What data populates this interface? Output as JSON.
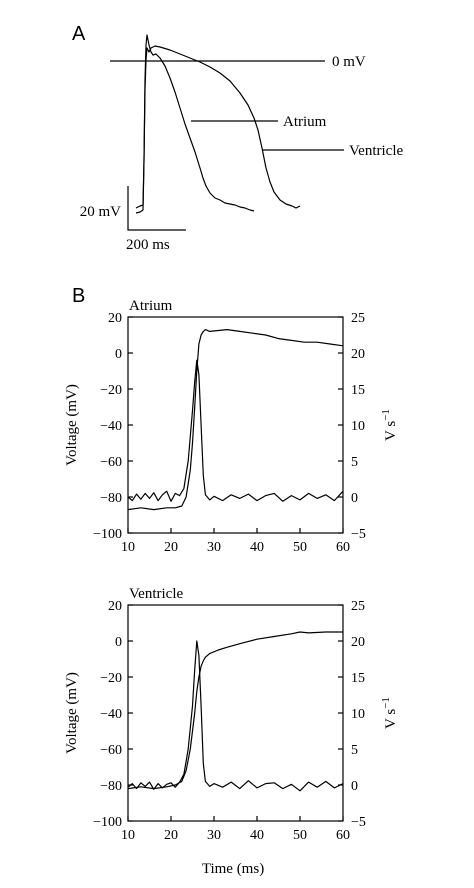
{
  "panel_a": {
    "letter": "A",
    "zero_label": "0 mV",
    "atrium_label": "Atrium",
    "ventricle_label": "Ventricle",
    "scale_voltage": "20 mV",
    "scale_time": "200 ms"
  },
  "panel_b": {
    "letter": "B",
    "shared_x_label": "Time (ms)"
  },
  "chart_data": [
    {
      "id": "atrium",
      "type": "line",
      "title": "Atrium",
      "xlabel": "",
      "ylabel": "Voltage (mV)",
      "y2label_base": "V s",
      "y2label_exp": "−1",
      "xlim": [
        10,
        60
      ],
      "ylim": [
        -100,
        20
      ],
      "y2lim": [
        -5,
        25
      ],
      "x_ticks": [
        10,
        20,
        30,
        40,
        50,
        60
      ],
      "y_ticks": [
        -100,
        -80,
        -60,
        -40,
        -20,
        0,
        20
      ],
      "y2_ticks": [
        -5,
        0,
        5,
        10,
        15,
        20,
        25
      ],
      "series": [
        {
          "axis": "left",
          "x": [
            10,
            13,
            16,
            19,
            21,
            22.5,
            23.5,
            24.5,
            25,
            25.5,
            26,
            26.5,
            27,
            27.5,
            28,
            29,
            31,
            33,
            36,
            39,
            42,
            45,
            48,
            51,
            54,
            57,
            60
          ],
          "y": [
            -87,
            -86,
            -87,
            -86,
            -86,
            -85,
            -80,
            -65,
            -50,
            -30,
            -10,
            5,
            10,
            12,
            13,
            12,
            12.5,
            13,
            12,
            11,
            10,
            8,
            7,
            6,
            6,
            5,
            4
          ]
        },
        {
          "axis": "right",
          "x": [
            10,
            11,
            12,
            13,
            14,
            15,
            16,
            17,
            18,
            19,
            20,
            21,
            22,
            23,
            24,
            25,
            25.5,
            26,
            26.5,
            27,
            27.5,
            28,
            29,
            30,
            32,
            34,
            36,
            38,
            40,
            42,
            44,
            46,
            48,
            50,
            52,
            54,
            56,
            58,
            60
          ],
          "y": [
            0,
            -0.5,
            0.4,
            -0.3,
            0.5,
            -0.2,
            0.6,
            -0.5,
            0.3,
            0.8,
            -0.6,
            0.5,
            0.2,
            1.2,
            5,
            12,
            16,
            19,
            17,
            10,
            3,
            0.3,
            -0.4,
            0.1,
            -0.5,
            0.3,
            -0.2,
            0.4,
            -0.5,
            0.2,
            0.5,
            -0.6,
            0.2,
            -0.4,
            0.5,
            -0.2,
            0.3,
            -0.5,
            0.8
          ]
        }
      ]
    },
    {
      "id": "ventricle",
      "type": "line",
      "title": "Ventricle",
      "xlabel": "Time (ms)",
      "ylabel": "Voltage (mV)",
      "y2label_base": "V s",
      "y2label_exp": "−1",
      "xlim": [
        10,
        60
      ],
      "ylim": [
        -100,
        20
      ],
      "y2lim": [
        -5,
        25
      ],
      "x_ticks": [
        10,
        20,
        30,
        40,
        50,
        60
      ],
      "y_ticks": [
        -100,
        -80,
        -60,
        -40,
        -20,
        0,
        20
      ],
      "y2_ticks": [
        -5,
        0,
        5,
        10,
        15,
        20,
        25
      ],
      "series": [
        {
          "axis": "left",
          "x": [
            10,
            13,
            16,
            19,
            21,
            22.5,
            23.5,
            24.5,
            25,
            25.5,
            26,
            26.5,
            27,
            27.5,
            28,
            29,
            31,
            33,
            36,
            40,
            44,
            48,
            50,
            52,
            56,
            60
          ],
          "y": [
            -82,
            -81,
            -82,
            -81,
            -80,
            -78,
            -72,
            -60,
            -50,
            -40,
            -28,
            -20,
            -14,
            -11,
            -9,
            -7,
            -5,
            -3.5,
            -1.5,
            1,
            2.5,
            4,
            5,
            4.5,
            5,
            5
          ]
        },
        {
          "axis": "right",
          "x": [
            10,
            11,
            12,
            13,
            14,
            15,
            16,
            17,
            18,
            19,
            20,
            21,
            22,
            23,
            24,
            25,
            25.5,
            26,
            26.5,
            27,
            27.5,
            28,
            29,
            30,
            32,
            34,
            36,
            38,
            40,
            42,
            44,
            46,
            48,
            50,
            52,
            54,
            56,
            58,
            60
          ],
          "y": [
            -0.3,
            0.2,
            -0.5,
            0.3,
            -0.2,
            0.4,
            -0.6,
            0.2,
            -0.4,
            0.1,
            0.3,
            -0.3,
            0.4,
            1.5,
            5,
            11,
            16,
            20,
            18,
            11,
            3,
            0.5,
            -0.2,
            0.2,
            -0.3,
            0.4,
            -0.5,
            0.6,
            -0.4,
            0.2,
            0.3,
            -0.5,
            0.1,
            -0.8,
            0.4,
            -0.3,
            0.5,
            -0.4,
            0.2
          ]
        }
      ]
    }
  ]
}
